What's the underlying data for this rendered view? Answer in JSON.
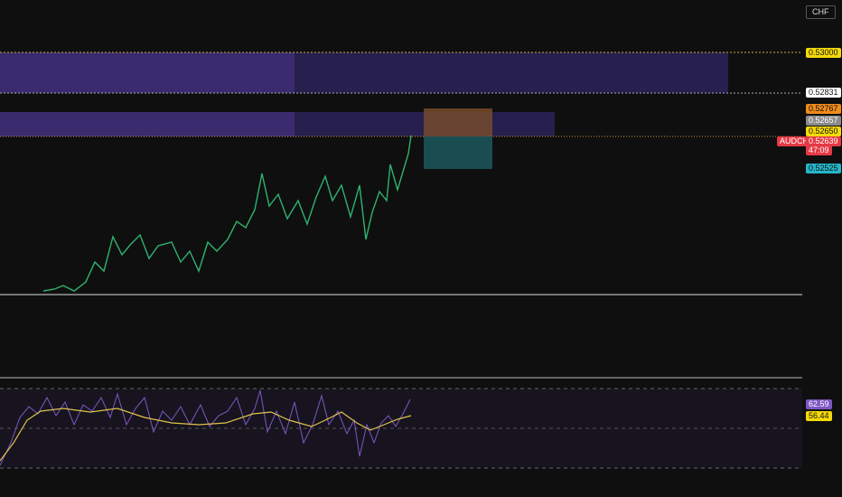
{
  "header": {
    "currency": "CHF"
  },
  "price_scale": {
    "levels": [
      "0.53000",
      "0.52831",
      "0.52767",
      "0.52657",
      "0.52650",
      "0.52525"
    ],
    "symbol": "AUDCHF",
    "last_price": "0.52639",
    "countdown": "47:09"
  },
  "rsi_panel": {
    "rsi": "62.59",
    "rsi_ma": "56.44"
  }
}
